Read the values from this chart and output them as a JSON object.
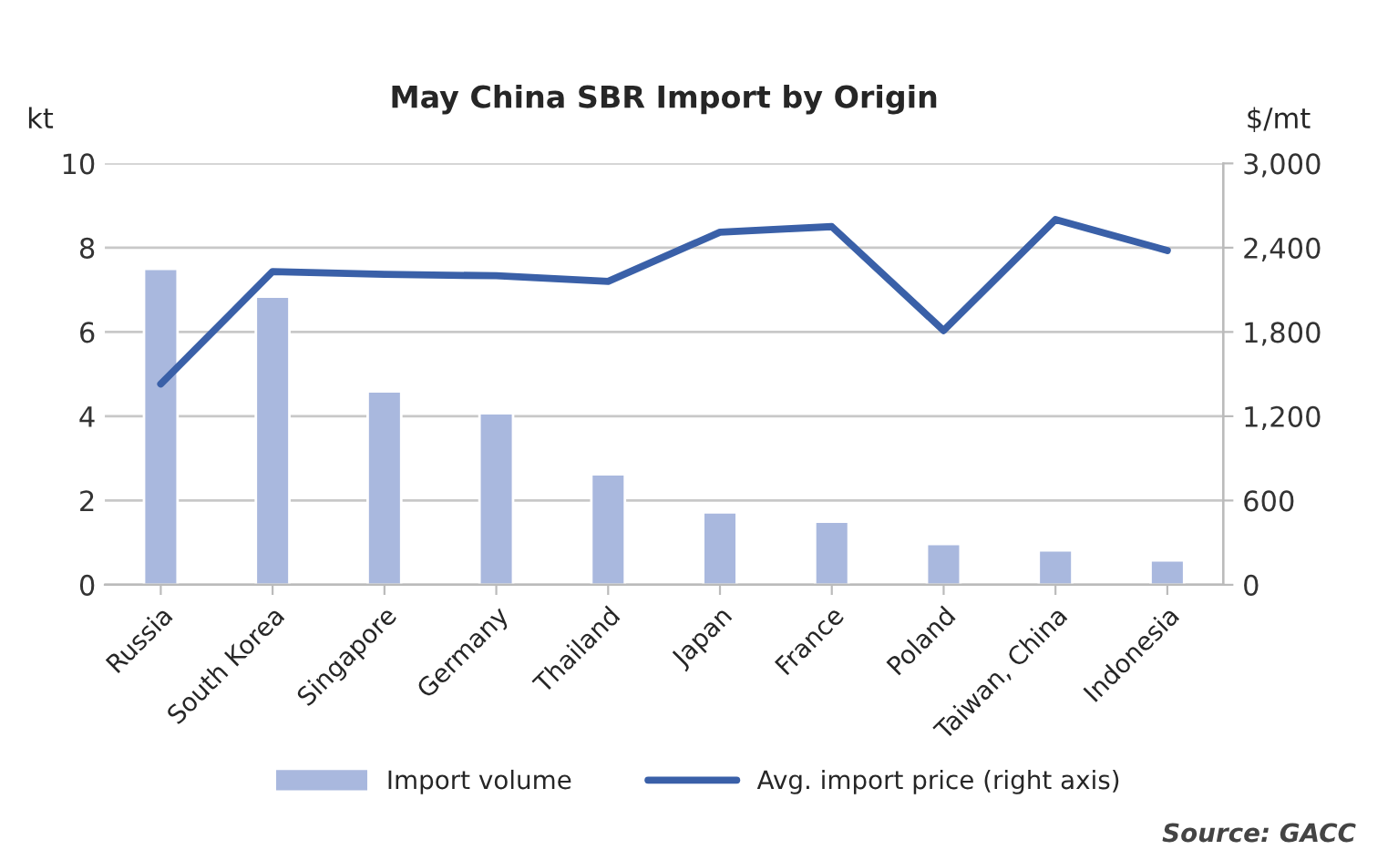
{
  "chart_data": {
    "type": "bar",
    "title": "May China SBR Import by Origin",
    "ylabel": "kt",
    "y2label": "$/mt",
    "categories": [
      "Russia",
      "South Korea",
      "Singapore",
      "Germany",
      "Thailand",
      "Japan",
      "France",
      "Poland",
      "Taiwan, China",
      "Indonesia"
    ],
    "series": [
      {
        "name": "Import volume",
        "color": "#a9b8de",
        "values": [
          7.5,
          6.84,
          4.59,
          4.07,
          2.62,
          1.72,
          1.5,
          0.97,
          0.82,
          0.58
        ]
      },
      {
        "name": "Avg. import price (right axis)",
        "type": "line",
        "axis": "y2",
        "color": "#3a60a8",
        "values": [
          1430,
          2230,
          2210,
          2200,
          2160,
          2510,
          2550,
          1810,
          2600,
          2380
        ]
      }
    ],
    "ylim": [
      0,
      10
    ],
    "yticks": [
      0,
      2,
      4,
      6,
      8,
      10
    ],
    "y2lim": [
      0,
      3000
    ],
    "y2ticks": [
      {
        "value": 0,
        "label": "0"
      },
      {
        "value": 600,
        "label": "600"
      },
      {
        "value": 1200,
        "label": "1,200"
      },
      {
        "value": 1800,
        "label": "1,800"
      },
      {
        "value": 2400,
        "label": "2,400"
      },
      {
        "value": 3000,
        "label": "3,000"
      }
    ],
    "grid": "y",
    "legend": "bottom",
    "marker": "none",
    "line_style": "solid",
    "annotations": [
      "Source: GACC"
    ]
  }
}
